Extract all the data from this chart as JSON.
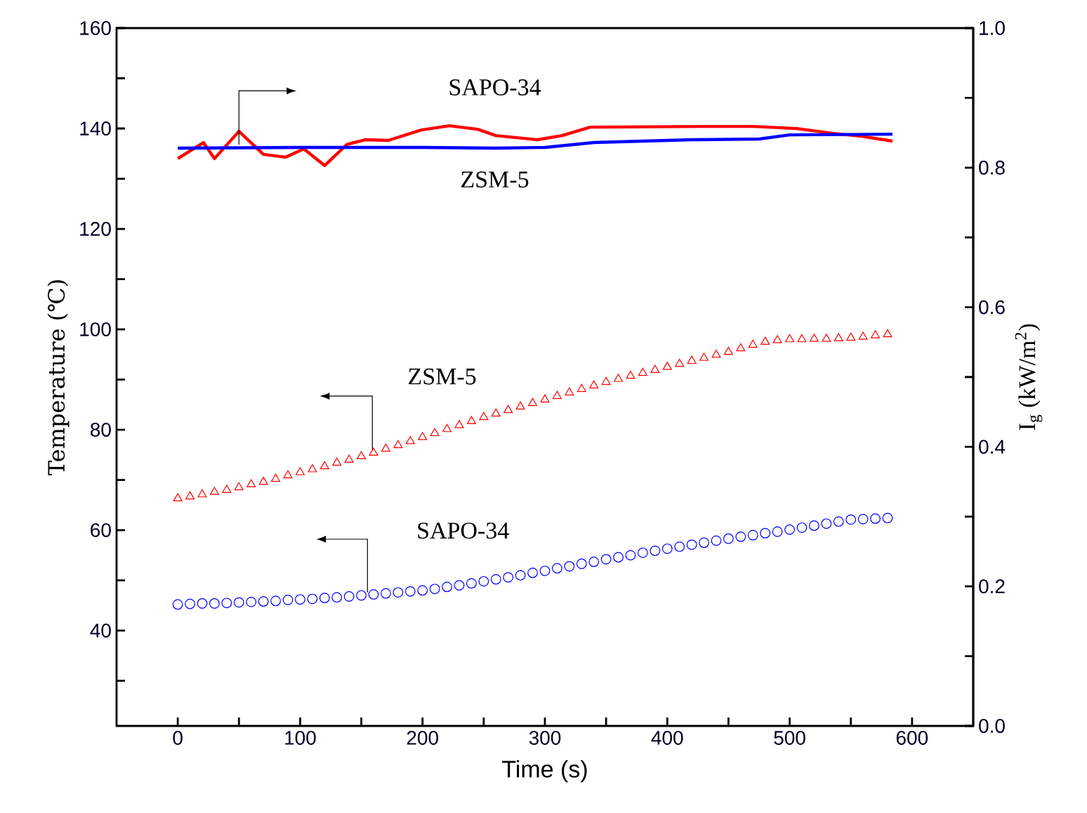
{
  "chart_data": {
    "type": "scatter",
    "xlabel": "Time (s)",
    "ylabel": "Temperature (℃)",
    "y2label": "I$_{g}$ (kW/m$^{2}$)",
    "xlim": [
      -50,
      650
    ],
    "xticks": [
      0,
      {
        "value": 50,
        "label": null
      },
      100,
      {
        "value": 150,
        "label": null
      },
      200,
      {
        "value": 250,
        "label": null
      },
      300,
      {
        "value": 350,
        "label": null
      },
      400,
      {
        "value": 450,
        "label": null
      },
      500,
      {
        "value": 550,
        "label": null
      },
      600
    ],
    "ylim": [
      21,
      160
    ],
    "yticks": [
      {
        "value": 30,
        "label": null
      },
      40,
      {
        "value": 50,
        "label": null
      },
      60,
      {
        "value": 70,
        "label": null
      },
      80,
      {
        "value": 90,
        "label": null
      },
      100,
      {
        "value": 110,
        "label": null
      },
      120,
      {
        "value": 130,
        "label": null
      },
      140,
      {
        "value": 150,
        "label": null
      },
      160
    ],
    "y2lim": [
      0,
      1
    ],
    "y2ticks": [
      {
        "value": 0,
        "label": "0.0"
      },
      {
        "value": 0.1,
        "label": null
      },
      0.2,
      {
        "value": 0.3,
        "label": null
      },
      0.4,
      {
        "value": 0.5,
        "label": null
      },
      0.6,
      {
        "value": 0.7,
        "label": null
      },
      0.8,
      {
        "value": 0.9,
        "label": null
      },
      {
        "value": 1,
        "label": "1.0"
      }
    ],
    "series": [
      {
        "name": "SAPO-34",
        "type": "line",
        "axis": "y2",
        "color": "#ff0000",
        "x": [
          0,
          21,
          30,
          50,
          70,
          88,
          103,
          120,
          138,
          153,
          172,
          199,
          222,
          245,
          260,
          294,
          314,
          337,
          429,
          471,
          506,
          536,
          559,
          584
        ],
        "values": [
          0.813,
          0.836,
          0.813,
          0.852,
          0.819,
          0.815,
          0.827,
          0.803,
          0.833,
          0.84,
          0.839,
          0.854,
          0.86,
          0.855,
          0.846,
          0.84,
          0.846,
          0.858,
          0.859,
          0.859,
          0.856,
          0.849,
          0.845,
          0.838
        ]
      },
      {
        "name": "ZSM-5",
        "type": "line",
        "axis": "y2",
        "color": "#0000ff",
        "x": [
          0,
          100,
          200,
          260,
          300,
          340,
          420,
          475,
          500,
          584
        ],
        "values": [
          0.828,
          0.829,
          0.829,
          0.828,
          0.829,
          0.836,
          0.84,
          0.841,
          0.847,
          0.848
        ]
      },
      {
        "name": "ZSM-5",
        "marker": "triangle",
        "color": "#ff0000",
        "x": [
          0,
          10,
          20,
          30,
          40,
          50,
          60,
          70,
          80,
          90,
          100,
          110,
          120,
          130,
          140,
          150,
          160,
          170,
          180,
          190,
          200,
          210,
          220,
          230,
          240,
          250,
          260,
          270,
          280,
          290,
          300,
          310,
          320,
          330,
          340,
          350,
          360,
          370,
          380,
          390,
          400,
          410,
          420,
          430,
          440,
          450,
          460,
          470,
          480,
          490,
          500,
          510,
          520,
          530,
          540,
          550,
          560,
          570,
          580
        ],
        "values": [
          66.3,
          66.7,
          67.1,
          67.6,
          68.0,
          68.5,
          69.1,
          69.6,
          70.2,
          70.9,
          71.5,
          72.1,
          72.7,
          73.4,
          74.0,
          74.7,
          75.4,
          76.2,
          76.9,
          77.7,
          78.5,
          79.3,
          80.1,
          80.9,
          81.7,
          82.5,
          83.2,
          83.9,
          84.6,
          85.3,
          86.0,
          86.7,
          87.4,
          88.1,
          88.8,
          89.5,
          90.1,
          90.7,
          91.3,
          91.9,
          92.5,
          93.1,
          93.7,
          94.3,
          94.9,
          95.5,
          96.2,
          96.9,
          97.5,
          97.8,
          98.0,
          98.0,
          98.1,
          98.1,
          98.2,
          98.3,
          98.5,
          98.8,
          99.0
        ]
      },
      {
        "name": "SAPO-34",
        "marker": "circle",
        "color": "#0000ff",
        "x": [
          0,
          10,
          20,
          30,
          40,
          50,
          60,
          70,
          80,
          90,
          100,
          110,
          120,
          130,
          140,
          150,
          160,
          170,
          180,
          190,
          200,
          210,
          220,
          230,
          240,
          250,
          260,
          270,
          280,
          290,
          300,
          310,
          320,
          330,
          340,
          350,
          360,
          370,
          380,
          390,
          400,
          410,
          420,
          430,
          440,
          450,
          460,
          470,
          480,
          490,
          500,
          510,
          520,
          530,
          540,
          550,
          560,
          570,
          580
        ],
        "values": [
          45.2,
          45.3,
          45.4,
          45.4,
          45.5,
          45.6,
          45.7,
          45.8,
          45.9,
          46.1,
          46.2,
          46.3,
          46.5,
          46.6,
          46.8,
          47.0,
          47.2,
          47.4,
          47.6,
          47.8,
          48.0,
          48.3,
          48.7,
          49.0,
          49.4,
          49.8,
          50.2,
          50.6,
          51.0,
          51.5,
          51.9,
          52.4,
          52.8,
          53.3,
          53.7,
          54.2,
          54.6,
          55.0,
          55.5,
          55.9,
          56.3,
          56.7,
          57.1,
          57.5,
          57.9,
          58.3,
          58.7,
          59.0,
          59.4,
          59.7,
          60.1,
          60.5,
          60.9,
          61.3,
          61.7,
          62.1,
          62.2,
          62.3,
          62.4
        ]
      }
    ]
  }
}
